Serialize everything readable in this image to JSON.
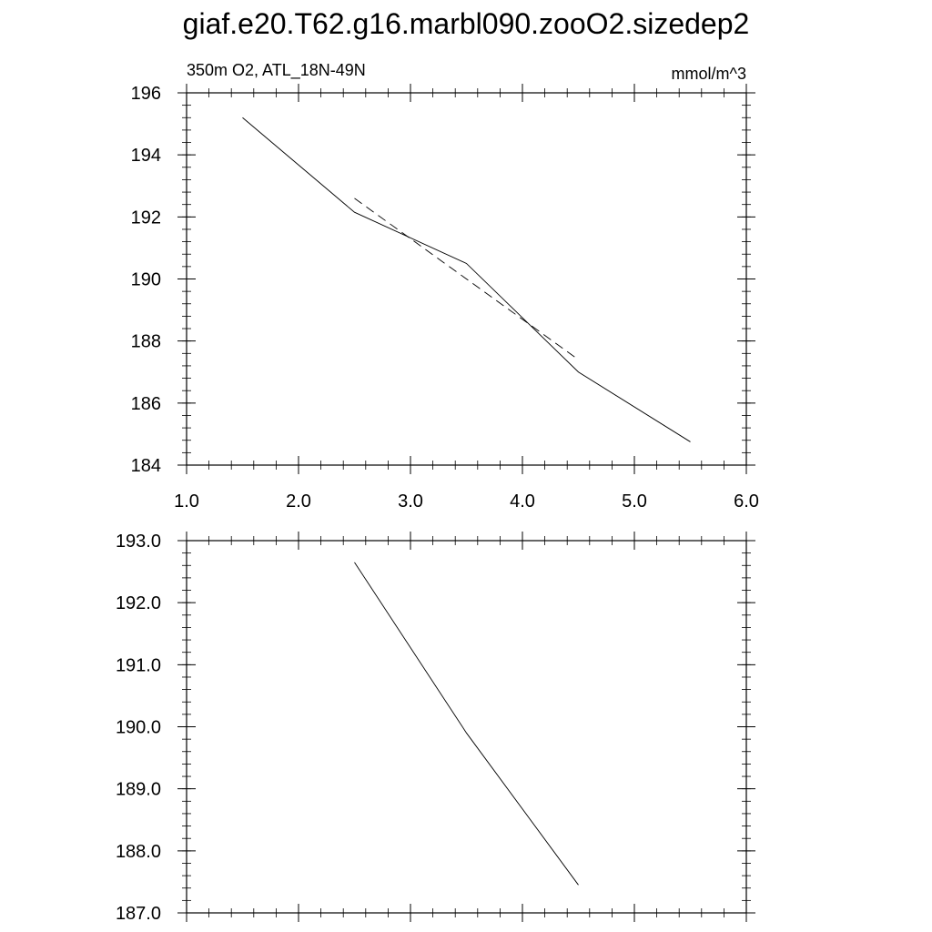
{
  "title": "giaf.e20.T62.g16.marbl090.zooO2.sizedep2",
  "chart_data": [
    {
      "type": "line",
      "left_string": "350m O2, ATL_18N-49N",
      "right_string": "mmol/m^3",
      "xlim": [
        1.0,
        6.0
      ],
      "ylim": [
        184,
        196
      ],
      "x_ticks": [
        1.0,
        2.0,
        3.0,
        4.0,
        5.0,
        6.0
      ],
      "x_tick_labels": [
        "1.0",
        "2.0",
        "3.0",
        "4.0",
        "5.0",
        "6.0"
      ],
      "y_ticks": [
        184,
        186,
        188,
        190,
        192,
        194,
        196
      ],
      "y_tick_labels": [
        "184",
        "186",
        "188",
        "190",
        "192",
        "194",
        "196"
      ],
      "grid": false,
      "series": [
        {
          "style": "solid",
          "color": "#000000",
          "x": [
            1.5,
            2.5,
            3.5,
            4.5,
            5.5
          ],
          "y": [
            195.2,
            192.15,
            190.5,
            187.0,
            184.75
          ]
        },
        {
          "style": "dashed",
          "color": "#000000",
          "x": [
            2.5,
            3.5,
            4.5
          ],
          "y": [
            192.6,
            190.0,
            187.4
          ]
        }
      ]
    },
    {
      "type": "line",
      "xlim": [
        1.0,
        6.0
      ],
      "ylim": [
        187.0,
        193.0
      ],
      "x_ticks": [
        1.0,
        2.0,
        3.0,
        4.0,
        5.0,
        6.0
      ],
      "y_ticks": [
        187.0,
        188.0,
        189.0,
        190.0,
        191.0,
        192.0,
        193.0
      ],
      "y_tick_labels": [
        "187.0",
        "188.0",
        "189.0",
        "190.0",
        "191.0",
        "192.0",
        "193.0"
      ],
      "grid": false,
      "series": [
        {
          "style": "solid",
          "color": "#000000",
          "x": [
            2.5,
            3.5,
            4.5
          ],
          "y": [
            192.65,
            189.9,
            187.45
          ]
        }
      ]
    }
  ]
}
